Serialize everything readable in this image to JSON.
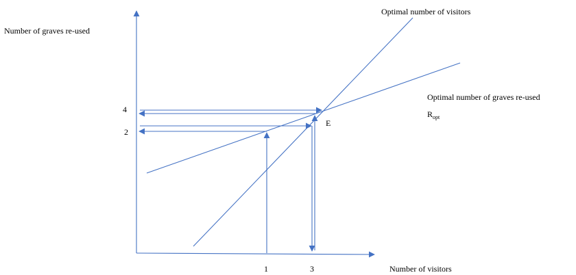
{
  "labels": {
    "y_axis": "Number of graves re-used",
    "x_axis": "Number of visitors",
    "visitors_line": "Optimal number of visitors",
    "graves_line": "Optimal number of graves re-used",
    "r_opt_base": "R",
    "r_opt_sub": "opt",
    "equilibrium": "E"
  },
  "ticks": {
    "y_upper": "4",
    "y_lower": "2",
    "x_left": "1",
    "x_right": "3"
  },
  "colors": {
    "line": "#4472C4",
    "text": "#000000"
  }
}
